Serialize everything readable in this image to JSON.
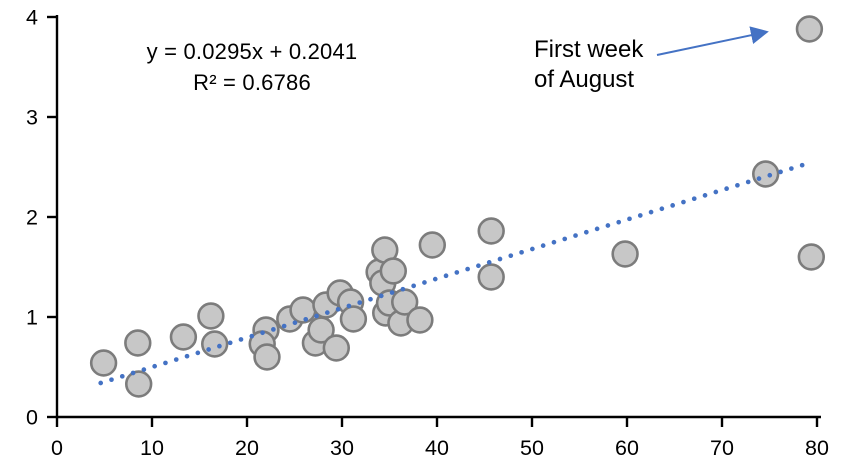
{
  "chart_data": {
    "type": "scatter",
    "title": "",
    "xlabel": "",
    "ylabel": "",
    "grid": false,
    "x_axis": {
      "min": 0,
      "max": 80,
      "ticks": [
        0,
        10,
        20,
        30,
        40,
        50,
        60,
        70,
        80
      ]
    },
    "y_axis": {
      "min": 0,
      "max": 4,
      "ticks": [
        0,
        1,
        2,
        3,
        4
      ]
    },
    "points": [
      [
        4.9,
        0.54
      ],
      [
        8.5,
        0.74
      ],
      [
        8.6,
        0.33
      ],
      [
        13.3,
        0.8
      ],
      [
        16.2,
        1.01
      ],
      [
        16.6,
        0.73
      ],
      [
        22.0,
        0.87
      ],
      [
        21.6,
        0.73
      ],
      [
        22.1,
        0.6
      ],
      [
        24.5,
        0.98
      ],
      [
        25.9,
        1.07
      ],
      [
        27.2,
        0.74
      ],
      [
        27.8,
        0.87
      ],
      [
        28.3,
        1.12
      ],
      [
        29.4,
        0.69
      ],
      [
        29.8,
        1.24
      ],
      [
        30.9,
        1.15
      ],
      [
        31.2,
        0.98
      ],
      [
        33.9,
        1.45
      ],
      [
        34.3,
        1.34
      ],
      [
        34.5,
        1.67
      ],
      [
        34.6,
        1.04
      ],
      [
        35.0,
        1.14
      ],
      [
        35.4,
        1.46
      ],
      [
        36.2,
        0.94
      ],
      [
        36.6,
        1.15
      ],
      [
        38.2,
        0.97
      ],
      [
        39.5,
        1.72
      ],
      [
        45.7,
        1.86
      ],
      [
        45.7,
        1.4
      ],
      [
        59.8,
        1.63
      ],
      [
        74.6,
        2.43
      ],
      [
        79.4,
        1.6
      ],
      [
        79.2,
        3.88
      ]
    ],
    "trendline": {
      "slope": 0.0295,
      "intercept": 0.2041,
      "r_squared": 0.6786,
      "x_start": 4.6,
      "x_end": 79.0,
      "style": "dotted"
    },
    "equation": {
      "line1": "y = 0.0295x + 0.2041",
      "line2": "R² = 0.6786"
    },
    "annotation": {
      "line1": "First week",
      "line2": "of August",
      "target_point": [
        79.2,
        3.88
      ]
    },
    "colors": {
      "marker_fill": "#c7c7c7",
      "marker_stroke": "#7c7c7c",
      "trendline": "#4472c4",
      "arrow": "#4472c4",
      "axis": "#000000",
      "text": "#000000"
    }
  }
}
